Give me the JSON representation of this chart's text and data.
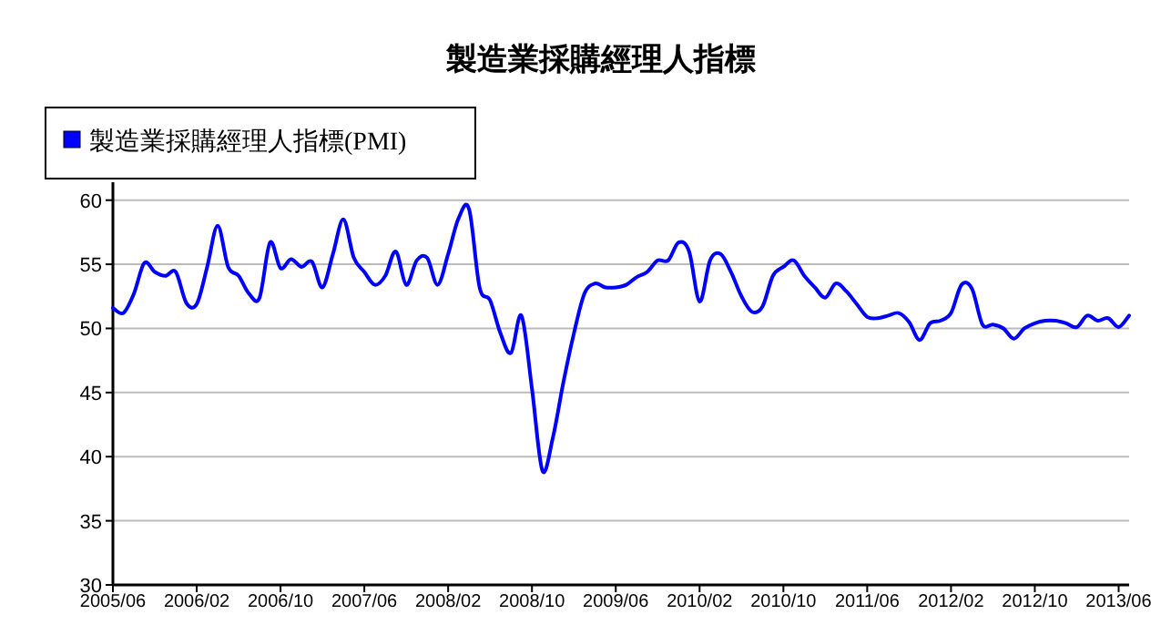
{
  "chart_data": {
    "type": "line",
    "title": "製造業採購經理人指標",
    "categories": [
      "2005/06",
      null,
      null,
      null,
      null,
      null,
      null,
      null,
      "2006/02",
      null,
      null,
      null,
      null,
      null,
      null,
      null,
      "2006/10",
      null,
      null,
      null,
      null,
      null,
      null,
      null,
      "2007/06",
      null,
      null,
      null,
      null,
      null,
      null,
      null,
      "2008/02",
      null,
      null,
      null,
      null,
      null,
      null,
      null,
      "2008/10",
      null,
      null,
      null,
      null,
      null,
      null,
      null,
      "2009/06",
      null,
      null,
      null,
      null,
      null,
      null,
      null,
      "2010/02",
      null,
      null,
      null,
      null,
      null,
      null,
      null,
      "2010/10",
      null,
      null,
      null,
      null,
      null,
      null,
      null,
      "2011/06",
      null,
      null,
      null,
      null,
      null,
      null,
      null,
      "2012/02",
      null,
      null,
      null,
      null,
      null,
      null,
      null,
      "2012/10",
      null,
      null,
      null,
      null,
      null,
      null,
      null,
      "2013/06",
      null
    ],
    "series": [
      {
        "name": "製造業採購經理人指標(PMI)",
        "color": "#0000ff",
        "values": [
          51.6,
          51.2,
          52.7,
          55.1,
          54.4,
          54.1,
          54.4,
          52.0,
          51.9,
          54.8,
          58.0,
          54.8,
          54.1,
          52.7,
          52.4,
          56.7,
          54.7,
          55.4,
          54.8,
          55.2,
          53.2,
          55.8,
          58.5,
          55.5,
          54.4,
          53.4,
          54.1,
          56.0,
          53.4,
          55.3,
          55.5,
          53.4,
          55.8,
          58.6,
          59.3,
          53.2,
          52.2,
          49.6,
          48.1,
          51.0,
          45.3,
          38.9,
          41.5,
          45.8,
          49.6,
          52.7,
          53.5,
          53.2,
          53.2,
          53.4,
          54.0,
          54.4,
          55.3,
          55.3,
          56.7,
          56.0,
          52.1,
          55.3,
          55.8,
          54.4,
          52.5,
          51.3,
          51.7,
          54.1,
          54.8,
          55.3,
          54.1,
          53.2,
          52.4,
          53.5,
          52.9,
          51.9,
          50.9,
          50.8,
          51.0,
          51.2,
          50.5,
          49.1,
          50.4,
          50.6,
          51.2,
          53.4,
          53.1,
          50.3,
          50.3,
          50.0,
          49.2,
          50.0,
          50.4,
          50.6,
          50.6,
          50.4,
          50.1,
          51.0,
          50.6,
          50.8,
          50.1,
          51.0
        ]
      }
    ],
    "ylim": [
      30,
      61.4
    ],
    "yticks": [
      30,
      35,
      40,
      45,
      50,
      55,
      60
    ],
    "grid": "y",
    "legend": "top left",
    "line_style": "solid",
    "marker": "none"
  }
}
